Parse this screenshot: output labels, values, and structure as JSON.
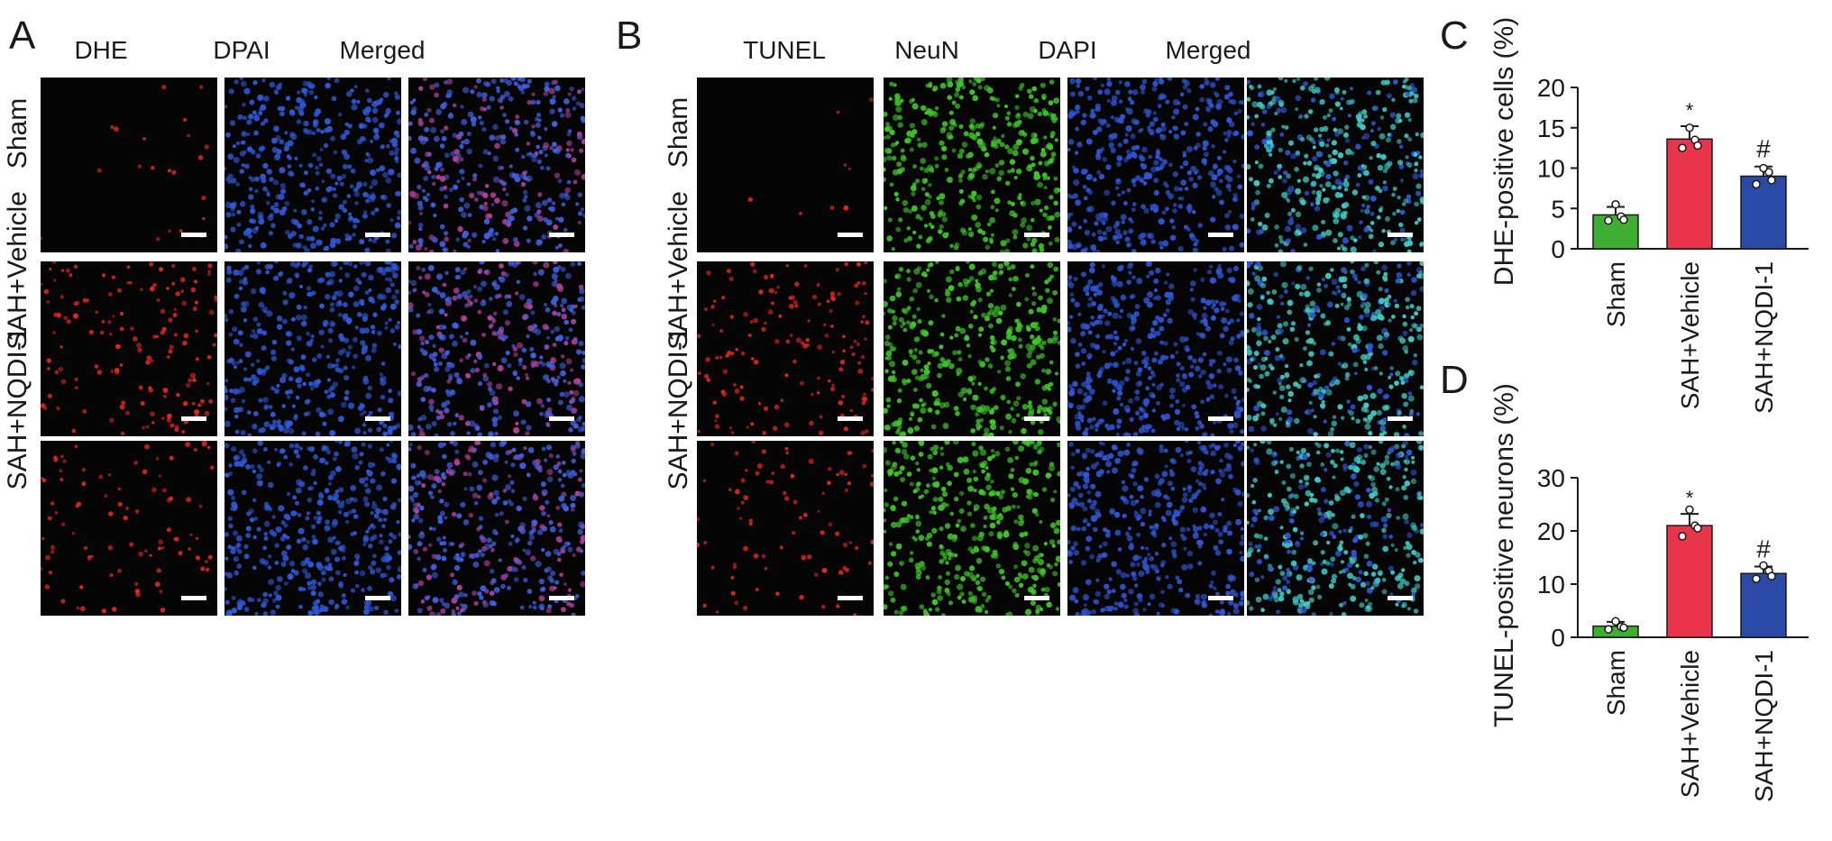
{
  "panels": {
    "A": {
      "letter": "A",
      "columns": [
        "DHE",
        "DPAI",
        "Merged"
      ],
      "rows": [
        "Sham",
        "SAH+Vehicle",
        "SAH+NQDI-1"
      ]
    },
    "B": {
      "letter": "B",
      "columns": [
        "TUNEL",
        "NeuN",
        "DAPI",
        "Merged"
      ],
      "rows": [
        "Sham",
        "SAH+Vehicle",
        "SAH+NQDI-1"
      ]
    },
    "C": {
      "letter": "C"
    },
    "D": {
      "letter": "D"
    }
  },
  "image_stains": {
    "DHE": {
      "color": "#e0261c",
      "densities": [
        0.05,
        0.35,
        0.22
      ]
    },
    "DPAI": {
      "color": "#2f58d8",
      "densities": [
        0.9,
        0.9,
        0.9
      ]
    },
    "MergedA": {
      "color": "#3f5ee0",
      "accent": "#b0409a",
      "densities": [
        0.9,
        0.9,
        0.9
      ]
    },
    "TUNEL": {
      "color": "#e0261c",
      "densities": [
        0.02,
        0.35,
        0.2
      ]
    },
    "NeuN": {
      "color": "#3fc52a",
      "densities": [
        0.9,
        0.9,
        0.9
      ]
    },
    "DAPI": {
      "color": "#2f55d6",
      "densities": [
        0.95,
        0.95,
        0.95
      ]
    },
    "MergedB": {
      "color": "#3fc9c2",
      "accent": "#2f55d6",
      "densities": [
        0.95,
        0.95,
        0.95
      ]
    }
  },
  "chart_data": [
    {
      "type": "bar",
      "panel": "C",
      "categories": [
        "Sham",
        "SAH+Vehicle",
        "SAH+NQDI-1"
      ],
      "values": [
        4.2,
        13.6,
        9.0
      ],
      "errors": [
        1.0,
        1.6,
        1.2
      ],
      "points": [
        [
          3.5,
          4.0,
          5.5,
          3.6
        ],
        [
          12.5,
          13.5,
          15.0,
          12.8
        ],
        [
          8.0,
          9.5,
          10.0,
          8.5
        ]
      ],
      "colors": [
        "#3fae35",
        "#e9344a",
        "#2b4aa5"
      ],
      "annotations": [
        "",
        "*",
        "#"
      ],
      "ylabel": "DHE-positive cells (%)",
      "ylim": [
        0,
        20
      ],
      "yticks": [
        0,
        5,
        10,
        15,
        20
      ]
    },
    {
      "type": "bar",
      "panel": "D",
      "categories": [
        "Sham",
        "SAH+Vehicle",
        "SAH+NQDI-1"
      ],
      "values": [
        2.1,
        21.0,
        12.0
      ],
      "errors": [
        0.8,
        2.2,
        1.3
      ],
      "points": [
        [
          1.5,
          2.0,
          3.0,
          1.8
        ],
        [
          19.0,
          21.0,
          24.0,
          20.5
        ],
        [
          11.0,
          12.5,
          13.5,
          11.5
        ]
      ],
      "colors": [
        "#3fae35",
        "#e9344a",
        "#2b4aa5"
      ],
      "annotations": [
        "",
        "*",
        "#"
      ],
      "ylabel": "TUNEL-positive neurons (%)",
      "ylim": [
        0,
        30
      ],
      "yticks": [
        0,
        10,
        20,
        30
      ]
    }
  ]
}
